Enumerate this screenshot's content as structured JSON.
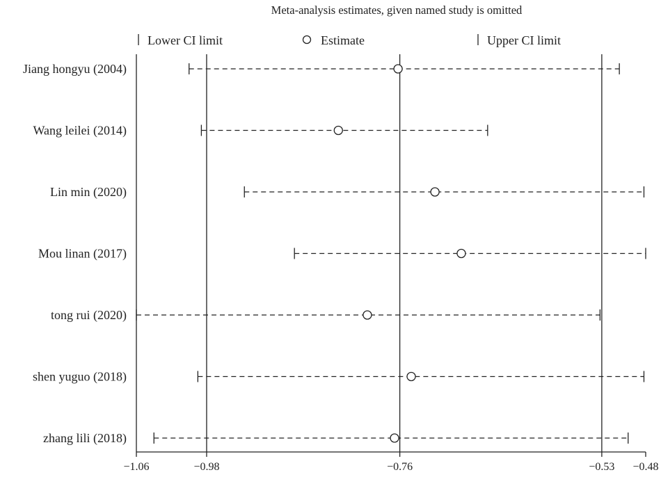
{
  "chart_data": {
    "type": "forest",
    "title": "Meta-analysis estimates, given named study is omitted",
    "legend": {
      "placement": "top",
      "lower": "Lower CI limit",
      "estimate": "Estimate",
      "upper": "Upper CI limit"
    },
    "xlim": [
      -1.06,
      -0.48
    ],
    "xticks": [
      -1.06,
      -0.98,
      -0.76,
      -0.53,
      -0.48
    ],
    "xtick_labels": [
      "−1.06",
      "−0.98",
      "−0.76",
      "−0.53",
      "−0.48"
    ],
    "reference_lines": [
      -0.98,
      -0.76,
      -0.53
    ],
    "studies": [
      {
        "name": "Jiang hongyu (2004)",
        "lower": -1.0,
        "estimate": -0.762,
        "upper": -0.51
      },
      {
        "name": "Wang leilei (2014)",
        "lower": -0.986,
        "estimate": -0.83,
        "upper": -0.66
      },
      {
        "name": "Lin min (2020)",
        "lower": -0.937,
        "estimate": -0.72,
        "upper": -0.482
      },
      {
        "name": "Mou linan (2017)",
        "lower": -0.88,
        "estimate": -0.69,
        "upper": -0.48
      },
      {
        "name": "tong rui (2020)",
        "lower": -1.06,
        "estimate": -0.797,
        "upper": -0.532
      },
      {
        "name": "shen yuguo (2018)",
        "lower": -0.99,
        "estimate": -0.747,
        "upper": -0.482
      },
      {
        "name": "zhang lili (2018)",
        "lower": -1.04,
        "estimate": -0.766,
        "upper": -0.5
      }
    ]
  }
}
